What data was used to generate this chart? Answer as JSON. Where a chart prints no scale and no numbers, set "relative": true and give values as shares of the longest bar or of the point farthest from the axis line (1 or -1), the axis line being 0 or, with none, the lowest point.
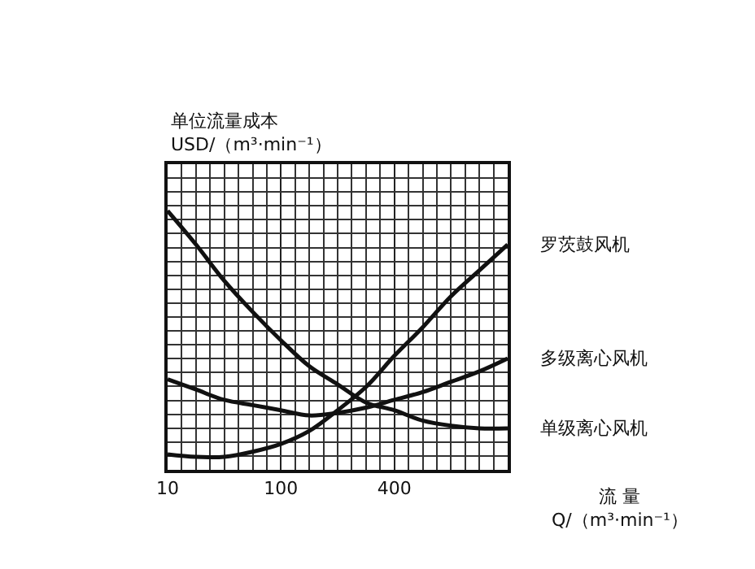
{
  "chart_data": {
    "type": "line",
    "relative": true,
    "ylabel": "单位流量成本\nUSD/（m³·min⁻¹）",
    "xlabel": "流 量\nQ/（m³·min⁻¹）",
    "categories": [
      "10",
      null,
      null,
      null,
      "100",
      null,
      null,
      null,
      "400",
      null,
      null,
      null,
      null
    ],
    "series": [
      {
        "name": "罗茨鼓风机",
        "color": "#111111",
        "values": [
          0.06,
          0.05,
          0.05,
          0.07,
          0.1,
          0.15,
          0.23,
          0.32,
          0.44,
          0.55,
          0.67,
          0.77,
          0.87
        ]
      },
      {
        "name": "多级离心风机",
        "color": "#111111",
        "values": [
          0.35,
          0.31,
          0.27,
          0.25,
          0.23,
          0.21,
          0.22,
          0.24,
          0.27,
          0.3,
          0.34,
          0.38,
          0.43
        ]
      },
      {
        "name": "单级离心风机",
        "color": "#111111",
        "values": [
          1.0,
          0.87,
          0.73,
          0.61,
          0.5,
          0.4,
          0.33,
          0.26,
          0.23,
          0.19,
          0.17,
          0.16,
          0.16
        ]
      }
    ],
    "grid": true,
    "legend": false,
    "marker": "none",
    "line_style": "solid"
  }
}
